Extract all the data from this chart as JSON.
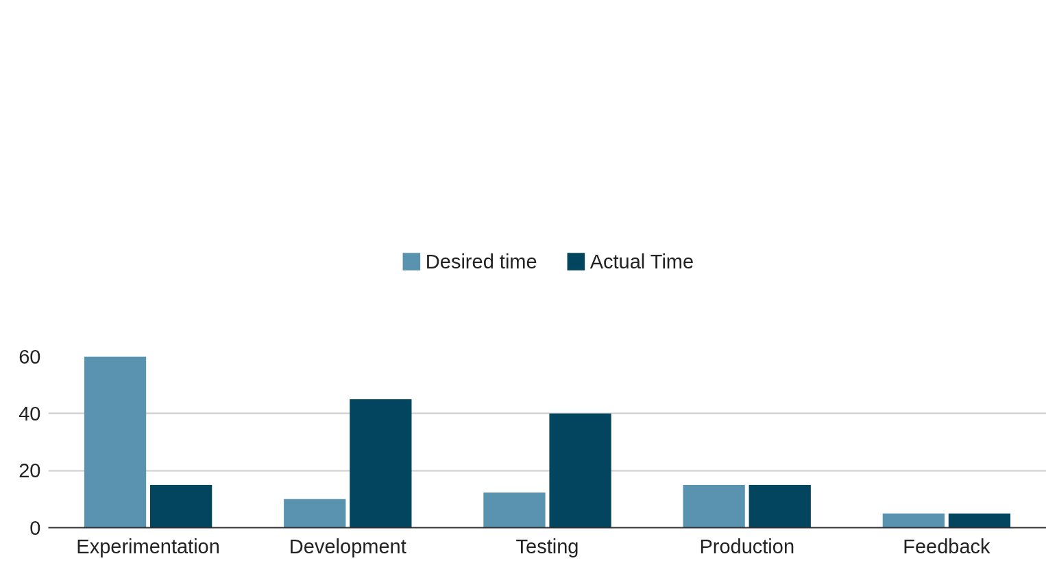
{
  "chart_data": {
    "type": "bar",
    "categories": [
      "Experimentation",
      "Development",
      "Testing",
      "Production",
      "Feedback"
    ],
    "series": [
      {
        "name": "Desired time",
        "color": "#5a93b0",
        "values": [
          60,
          10,
          12.3,
          15,
          5
        ]
      },
      {
        "name": "Actual Time",
        "color": "#03455f",
        "values": [
          15,
          45,
          40,
          15,
          5
        ]
      }
    ],
    "ylim": [
      0,
      60
    ],
    "yticks": [
      0,
      20,
      40,
      60
    ],
    "grid": "y",
    "legend": "top"
  }
}
